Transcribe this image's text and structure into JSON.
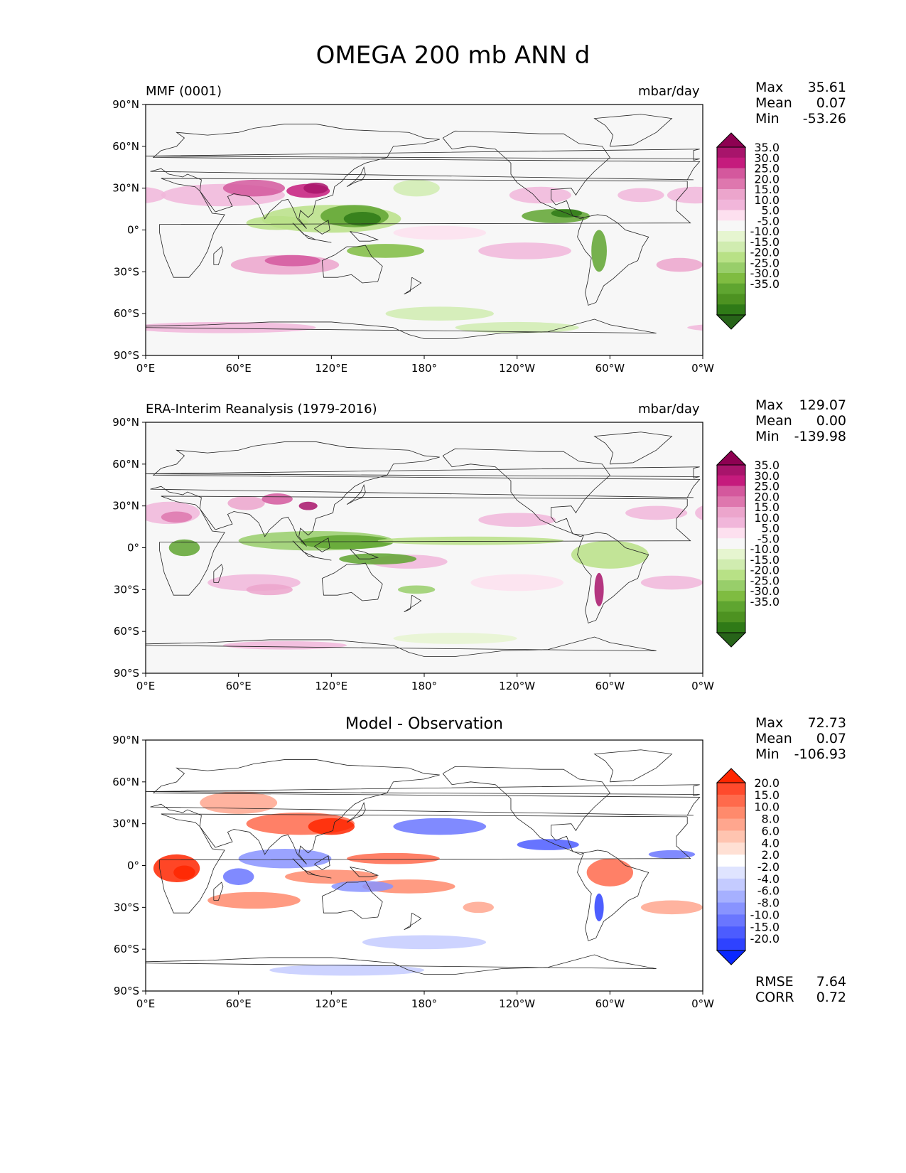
{
  "title": "OMEGA 200 mb ANN d",
  "x_ticks": [
    "0°E",
    "60°E",
    "120°E",
    "180°",
    "120°W",
    "60°W",
    "0°W"
  ],
  "y_ticks": [
    "90°N",
    "60°N",
    "30°N",
    "0°",
    "30°S",
    "60°S",
    "90°S"
  ],
  "panels": [
    {
      "name": "model",
      "left_title": "MMF (0001)",
      "right_title": "mbar/day",
      "center_title": "",
      "stats": [
        {
          "label": "Max",
          "value": "35.61"
        },
        {
          "label": "Mean",
          "value": "0.07"
        },
        {
          "label": "Min",
          "value": "-53.26"
        }
      ],
      "colorbar_labels": [
        "35.0",
        "30.0",
        "25.0",
        "20.0",
        "15.0",
        "10.0",
        "5.0",
        "-5.0",
        "-10.0",
        "-15.0",
        "-20.0",
        "-25.0",
        "-30.0",
        "-35.0"
      ],
      "colorbar_colors": [
        "#8e0152",
        "#a8146b",
        "#c51b7d",
        "#d4589d",
        "#de77ae",
        "#eca5cc",
        "#f1b6da",
        "#fde0ef",
        "#f7f7f7",
        "#e6f5d0",
        "#d0ecb0",
        "#b8e186",
        "#98ce6a",
        "#7fbc41",
        "#5fa530",
        "#4d9221",
        "#2f7a17",
        "#276419"
      ]
    },
    {
      "name": "observation",
      "left_title": "ERA-Interim Reanalysis (1979-2016)",
      "right_title": "mbar/day",
      "center_title": "",
      "stats": [
        {
          "label": "Max",
          "value": "129.07"
        },
        {
          "label": "Mean",
          "value": "0.00"
        },
        {
          "label": "Min",
          "value": "-139.98"
        }
      ],
      "colorbar_labels": [
        "35.0",
        "30.0",
        "25.0",
        "20.0",
        "15.0",
        "10.0",
        "5.0",
        "-5.0",
        "-10.0",
        "-15.0",
        "-20.0",
        "-25.0",
        "-30.0",
        "-35.0"
      ],
      "colorbar_colors": [
        "#8e0152",
        "#a8146b",
        "#c51b7d",
        "#d4589d",
        "#de77ae",
        "#eca5cc",
        "#f1b6da",
        "#fde0ef",
        "#f7f7f7",
        "#e6f5d0",
        "#d0ecb0",
        "#b8e186",
        "#98ce6a",
        "#7fbc41",
        "#5fa530",
        "#4d9221",
        "#2f7a17",
        "#276419"
      ]
    },
    {
      "name": "difference",
      "left_title": "",
      "right_title": "",
      "center_title": "Model - Observation",
      "stats": [
        {
          "label": "Max",
          "value": "72.73"
        },
        {
          "label": "Mean",
          "value": "0.07"
        },
        {
          "label": "Min",
          "value": "-106.93"
        }
      ],
      "extra_stats": [
        {
          "label": "RMSE",
          "value": "7.64"
        },
        {
          "label": "CORR",
          "value": "0.72"
        }
      ],
      "colorbar_labels": [
        "20.0",
        "15.0",
        "10.0",
        "8.0",
        "6.0",
        "4.0",
        "2.0",
        "-2.0",
        "-4.0",
        "-6.0",
        "-8.0",
        "-10.0",
        "-15.0",
        "-20.0"
      ],
      "colorbar_colors": [
        "#ff2600",
        "#ff4a2c",
        "#ff6a4c",
        "#ff8a6c",
        "#ffa68e",
        "#ffc4b0",
        "#ffe0d4",
        "#ffffff",
        "#dfe4ff",
        "#c4cbff",
        "#a6b0ff",
        "#8893ff",
        "#6a76ff",
        "#4c5cff",
        "#2e42ff",
        "#0a28ff"
      ]
    }
  ]
}
